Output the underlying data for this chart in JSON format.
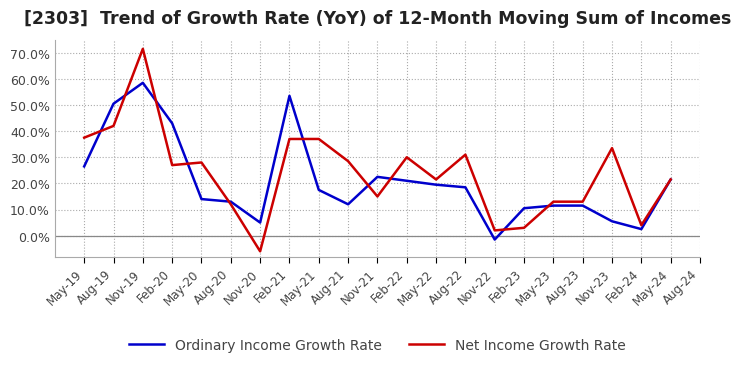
{
  "title": "[2303]  Trend of Growth Rate (YoY) of 12-Month Moving Sum of Incomes",
  "title_fontsize": 12.5,
  "ylim": [
    -0.08,
    0.75
  ],
  "yticks": [
    0.0,
    0.1,
    0.2,
    0.3,
    0.4,
    0.5,
    0.6,
    0.7
  ],
  "background_color": "#ffffff",
  "grid_color": "#aaaaaa",
  "dates": [
    "May-19",
    "Aug-19",
    "Nov-19",
    "Feb-20",
    "May-20",
    "Aug-20",
    "Nov-20",
    "Feb-21",
    "May-21",
    "Aug-21",
    "Nov-21",
    "Feb-22",
    "May-22",
    "Aug-22",
    "Nov-22",
    "Feb-23",
    "May-23",
    "Aug-23",
    "Nov-23",
    "Feb-24",
    "May-24",
    "Aug-24"
  ],
  "ordinary_income": [
    0.265,
    0.505,
    0.585,
    0.43,
    0.14,
    0.13,
    0.05,
    0.535,
    0.175,
    0.12,
    0.225,
    0.21,
    0.195,
    0.185,
    -0.015,
    0.105,
    0.115,
    0.115,
    0.055,
    0.025,
    0.215,
    null
  ],
  "net_income": [
    0.375,
    0.42,
    0.715,
    0.27,
    0.28,
    0.12,
    -0.06,
    0.37,
    0.37,
    0.285,
    0.15,
    0.3,
    0.215,
    0.31,
    0.02,
    0.03,
    0.13,
    0.13,
    0.335,
    0.04,
    0.215,
    null
  ],
  "ordinary_color": "#0000cc",
  "net_color": "#cc0000",
  "line_width": 1.8,
  "legend_fontsize": 10
}
